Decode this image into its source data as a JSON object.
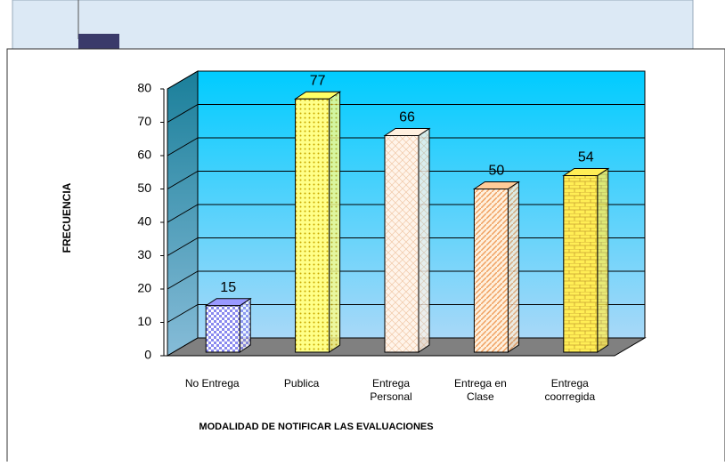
{
  "chart_data": {
    "type": "bar3d",
    "x_label": "MODALIDAD DE NOTIFICAR LAS EVALUACIONES",
    "y_label": "FRECUENCIA",
    "categories": [
      "No Entrega",
      "Publica",
      "Entrega\nPersonal",
      "Entrega en\nClase",
      "Entrega\ncoorregida"
    ],
    "values": [
      15,
      77,
      66,
      50,
      54
    ],
    "colors": [
      "#9999ff",
      "#ffff66",
      "#fff0e0",
      "#ffcc99",
      "#ffee55"
    ],
    "ylim": [
      0,
      80
    ],
    "yticks": [
      0,
      10,
      20,
      30,
      40,
      50,
      60,
      70,
      80
    ],
    "grid": true
  }
}
